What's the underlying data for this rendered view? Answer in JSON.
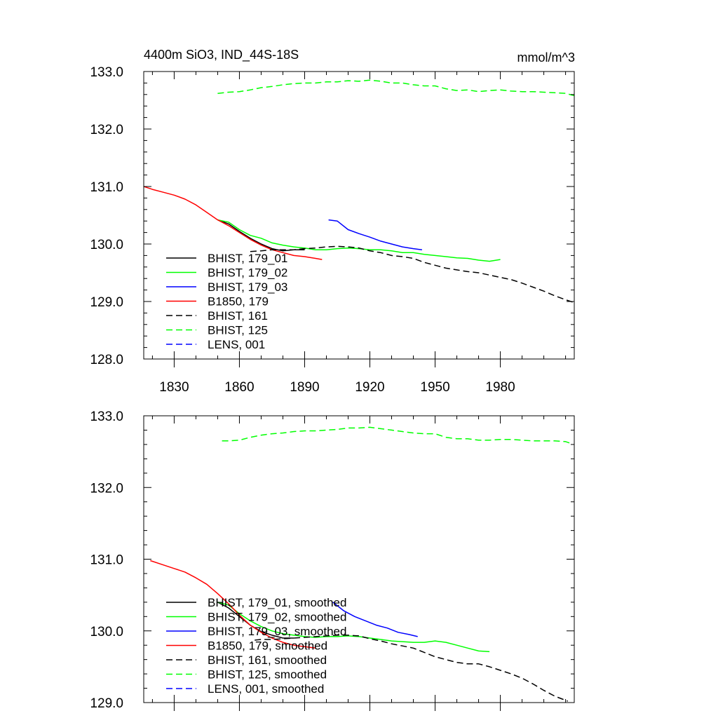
{
  "chart_data": [
    {
      "type": "line",
      "title": "4400m SiO3, IND_44S-18S",
      "units": "mmol/m^3",
      "xlim": [
        1816,
        2014
      ],
      "ylim": [
        128.0,
        133.0
      ],
      "xticks": [
        1830,
        1860,
        1890,
        1920,
        1950,
        1980
      ],
      "xtick_labels": [
        "1830",
        "1860",
        "1890",
        "1920",
        "1950",
        "1980"
      ],
      "yticks": [
        128.0,
        129.0,
        130.0,
        131.0,
        132.0,
        133.0
      ],
      "ytick_labels": [
        "128.0",
        "129.0",
        "130.0",
        "131.0",
        "132.0",
        "133.0"
      ],
      "legend_position": "lower-left",
      "series": [
        {
          "name": "BHIST, 179_01",
          "color": "#000000",
          "dash": "solid",
          "x": [
            1850,
            1855,
            1860,
            1865,
            1870,
            1875,
            1880,
            1885,
            1890
          ],
          "y": [
            130.42,
            130.35,
            130.22,
            130.1,
            130.0,
            129.92,
            129.88,
            129.9,
            129.9
          ]
        },
        {
          "name": "BHIST, 179_02",
          "color": "#00ff00",
          "dash": "solid",
          "x": [
            1850,
            1855,
            1860,
            1865,
            1870,
            1875,
            1880,
            1885,
            1890,
            1895,
            1900,
            1905,
            1910,
            1915,
            1920,
            1925,
            1930,
            1935,
            1940,
            1945,
            1950,
            1955,
            1960,
            1965,
            1970,
            1975,
            1980
          ],
          "y": [
            130.42,
            130.38,
            130.25,
            130.15,
            130.1,
            130.02,
            129.98,
            129.95,
            129.93,
            129.9,
            129.9,
            129.92,
            129.93,
            129.92,
            129.9,
            129.9,
            129.88,
            129.85,
            129.85,
            129.82,
            129.8,
            129.78,
            129.76,
            129.75,
            129.72,
            129.7,
            129.73
          ]
        },
        {
          "name": "BHIST, 179_03",
          "color": "#0000ff",
          "dash": "solid",
          "x": [
            1901,
            1905,
            1910,
            1915,
            1920,
            1925,
            1930,
            1935,
            1940,
            1944
          ],
          "y": [
            130.42,
            130.4,
            130.25,
            130.18,
            130.12,
            130.05,
            130.0,
            129.95,
            129.92,
            129.9
          ]
        },
        {
          "name": "B1850, 179",
          "color": "#ff0000",
          "dash": "solid",
          "x": [
            1816,
            1820,
            1825,
            1830,
            1835,
            1840,
            1845,
            1850,
            1855,
            1860,
            1865,
            1870,
            1875,
            1880,
            1885,
            1890,
            1895,
            1898
          ],
          "y": [
            131.0,
            130.95,
            130.9,
            130.85,
            130.78,
            130.68,
            130.55,
            130.42,
            130.32,
            130.2,
            130.08,
            129.98,
            129.9,
            129.85,
            129.8,
            129.78,
            129.75,
            129.73
          ]
        },
        {
          "name": "BHIST, 161",
          "color": "#000000",
          "dash": "dashed",
          "x": [
            1865,
            1870,
            1875,
            1880,
            1885,
            1890,
            1895,
            1900,
            1905,
            1910,
            1915,
            1920,
            1925,
            1930,
            1935,
            1940,
            1945,
            1950,
            1955,
            1960,
            1965,
            1970,
            1975,
            1980,
            1985,
            1990,
            1995,
            2000,
            2005,
            2010,
            2014
          ],
          "y": [
            129.87,
            129.88,
            129.9,
            129.9,
            129.9,
            129.92,
            129.93,
            129.95,
            129.96,
            129.95,
            129.93,
            129.88,
            129.85,
            129.8,
            129.78,
            129.75,
            129.68,
            129.63,
            129.58,
            129.55,
            129.52,
            129.5,
            129.46,
            129.42,
            129.38,
            129.32,
            129.25,
            129.18,
            129.1,
            129.03,
            128.98
          ]
        },
        {
          "name": "BHIST, 125",
          "color": "#00ff00",
          "dash": "dashed",
          "x": [
            1850,
            1855,
            1860,
            1865,
            1870,
            1875,
            1880,
            1885,
            1890,
            1895,
            1900,
            1905,
            1910,
            1915,
            1920,
            1925,
            1930,
            1935,
            1940,
            1945,
            1950,
            1955,
            1960,
            1965,
            1970,
            1975,
            1980,
            1985,
            1990,
            1995,
            2000,
            2005,
            2010,
            2014
          ],
          "y": [
            132.62,
            132.64,
            132.65,
            132.68,
            132.72,
            132.74,
            132.77,
            132.79,
            132.8,
            132.8,
            132.82,
            132.82,
            132.84,
            132.83,
            132.85,
            132.83,
            132.8,
            132.8,
            132.77,
            132.75,
            132.75,
            132.7,
            132.67,
            132.68,
            132.65,
            132.67,
            132.68,
            132.66,
            132.65,
            132.65,
            132.64,
            132.63,
            132.62,
            132.58
          ]
        },
        {
          "name": "LENS, 001",
          "color": "#0000ff",
          "dash": "dashed",
          "x": [],
          "y": []
        }
      ]
    },
    {
      "type": "line",
      "xlim": [
        1816,
        2014
      ],
      "ylim": [
        129.0,
        133.0
      ],
      "xticks": [
        1830,
        1860,
        1890,
        1920,
        1950,
        1980
      ],
      "yticks": [
        129.0,
        130.0,
        131.0,
        132.0,
        133.0
      ],
      "ytick_labels": [
        "129.0",
        "130.0",
        "131.0",
        "132.0",
        "133.0"
      ],
      "legend_position": "lower-left",
      "series": [
        {
          "name": "BHIST, 179_01, smoothed",
          "color": "#000000",
          "dash": "solid",
          "x": [
            1850,
            1855,
            1860,
            1865,
            1870,
            1875,
            1880,
            1885
          ],
          "y": [
            130.4,
            130.32,
            130.2,
            130.08,
            129.99,
            129.94,
            129.9,
            129.9
          ]
        },
        {
          "name": "BHIST, 179_02, smoothed",
          "color": "#00ff00",
          "dash": "solid",
          "x": [
            1850,
            1855,
            1860,
            1865,
            1870,
            1875,
            1880,
            1885,
            1890,
            1895,
            1900,
            1905,
            1910,
            1915,
            1920,
            1925,
            1930,
            1935,
            1940,
            1945,
            1950,
            1955,
            1960,
            1965,
            1970,
            1975
          ],
          "y": [
            130.4,
            130.36,
            130.24,
            130.14,
            130.06,
            130.0,
            129.96,
            129.94,
            129.92,
            129.91,
            129.92,
            129.92,
            129.93,
            129.92,
            129.9,
            129.88,
            129.86,
            129.85,
            129.84,
            129.84,
            129.86,
            129.84,
            129.8,
            129.76,
            129.72,
            129.71
          ]
        },
        {
          "name": "BHIST, 179_03, smoothed",
          "color": "#0000ff",
          "dash": "solid",
          "x": [
            1903,
            1908,
            1913,
            1918,
            1923,
            1928,
            1933,
            1938,
            1942
          ],
          "y": [
            130.4,
            130.28,
            130.2,
            130.14,
            130.08,
            130.04,
            129.98,
            129.95,
            129.92
          ]
        },
        {
          "name": "B1850, 179, smoothed",
          "color": "#ff0000",
          "dash": "solid",
          "x": [
            1819,
            1825,
            1830,
            1835,
            1840,
            1845,
            1850,
            1855,
            1860,
            1865,
            1870,
            1875,
            1880,
            1885,
            1890,
            1895
          ],
          "y": [
            130.98,
            130.92,
            130.87,
            130.82,
            130.74,
            130.65,
            130.52,
            130.38,
            130.22,
            130.08,
            129.98,
            129.9,
            129.84,
            129.8,
            129.78,
            129.76
          ]
        },
        {
          "name": "BHIST, 161, smoothed",
          "color": "#000000",
          "dash": "dashed",
          "x": [
            1867,
            1870,
            1875,
            1880,
            1885,
            1890,
            1895,
            1900,
            1905,
            1910,
            1915,
            1920,
            1925,
            1930,
            1935,
            1940,
            1945,
            1950,
            1955,
            1960,
            1965,
            1970,
            1975,
            1980,
            1985,
            1990,
            1995,
            2000,
            2005,
            2011
          ],
          "y": [
            129.87,
            129.88,
            129.88,
            129.89,
            129.9,
            129.91,
            129.92,
            129.93,
            129.94,
            129.94,
            129.93,
            129.89,
            129.86,
            129.82,
            129.79,
            129.76,
            129.7,
            129.64,
            129.6,
            129.56,
            129.54,
            129.54,
            129.5,
            129.45,
            129.4,
            129.34,
            129.26,
            129.17,
            129.09,
            129.02
          ]
        },
        {
          "name": "BHIST, 125, smoothed",
          "color": "#00ff00",
          "dash": "dashed",
          "x": [
            1852,
            1855,
            1860,
            1865,
            1870,
            1875,
            1880,
            1885,
            1890,
            1895,
            1900,
            1905,
            1910,
            1915,
            1920,
            1925,
            1930,
            1935,
            1940,
            1945,
            1950,
            1955,
            1960,
            1965,
            1970,
            1975,
            1980,
            1985,
            1990,
            1995,
            2000,
            2005,
            2010,
            2012
          ],
          "y": [
            132.65,
            132.65,
            132.66,
            132.7,
            132.73,
            132.75,
            132.76,
            132.78,
            132.79,
            132.79,
            132.8,
            132.81,
            132.83,
            132.83,
            132.84,
            132.82,
            132.8,
            132.78,
            132.76,
            132.75,
            132.75,
            132.7,
            132.68,
            132.68,
            132.66,
            132.66,
            132.67,
            132.67,
            132.66,
            132.65,
            132.65,
            132.65,
            132.64,
            132.62
          ]
        },
        {
          "name": "LENS, 001, smoothed",
          "color": "#0000ff",
          "dash": "dashed",
          "x": [],
          "y": []
        }
      ]
    }
  ]
}
